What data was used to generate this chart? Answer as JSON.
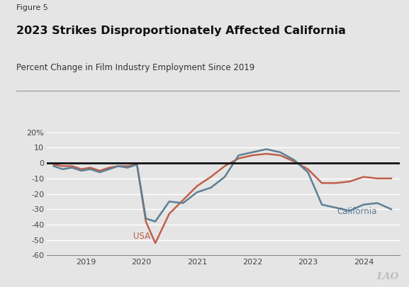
{
  "figure_label": "Figure 5",
  "title": "2023 Strikes Disproportionately Affected California",
  "subtitle": "Percent Change in Film Industry Employment Since 2019",
  "background_color": "#e5e5e5",
  "plot_background_color": "#e5e5e5",
  "california_color": "#5d7f95",
  "usa_color": "#c0604a",
  "zero_line_color": "#111111",
  "grid_color": "#ffffff",
  "california_label": "California",
  "usa_label": "USA",
  "ylim": [
    -60,
    22
  ],
  "yticks": [
    20,
    10,
    0,
    -10,
    -20,
    -30,
    -40,
    -50,
    -60
  ],
  "ytick_labels": [
    "20%",
    "10",
    "0",
    "-10",
    "-20",
    "-30",
    "-40",
    "-50",
    "-60"
  ],
  "california_x": [
    2018.42,
    2018.58,
    2018.75,
    2018.92,
    2019.08,
    2019.25,
    2019.42,
    2019.58,
    2019.75,
    2019.92,
    2020.08,
    2020.25,
    2020.5,
    2020.75,
    2021.0,
    2021.25,
    2021.5,
    2021.75,
    2022.0,
    2022.25,
    2022.5,
    2022.75,
    2023.0,
    2023.25,
    2023.5,
    2023.75,
    2024.0,
    2024.25,
    2024.5
  ],
  "california_y": [
    -2,
    -4,
    -3,
    -5,
    -4,
    -6,
    -4,
    -2,
    -3,
    -1,
    -36,
    -38,
    -25,
    -26,
    -19,
    -16,
    -9,
    5,
    7,
    9,
    7,
    2,
    -6,
    -27,
    -29,
    -31,
    -27,
    -26,
    -30
  ],
  "usa_x": [
    2018.42,
    2018.58,
    2018.75,
    2018.92,
    2019.08,
    2019.25,
    2019.42,
    2019.58,
    2019.75,
    2019.92,
    2020.08,
    2020.25,
    2020.5,
    2020.75,
    2021.0,
    2021.25,
    2021.5,
    2021.75,
    2022.0,
    2022.25,
    2022.5,
    2022.75,
    2023.0,
    2023.25,
    2023.5,
    2023.75,
    2024.0,
    2024.25,
    2024.5
  ],
  "usa_y": [
    -1,
    -2,
    -2,
    -4,
    -3,
    -5,
    -3,
    -2,
    -2,
    -1,
    -38,
    -52,
    -33,
    -24,
    -15,
    -9,
    -2,
    3,
    5,
    6,
    5,
    1,
    -4,
    -13,
    -13,
    -12,
    -9,
    -10,
    -10
  ],
  "xtick_positions": [
    2019,
    2020,
    2021,
    2022,
    2023,
    2024
  ],
  "xtick_labels": [
    "2019",
    "2020",
    "2021",
    "2022",
    "2023",
    "2024"
  ],
  "lao_watermark": "LAO"
}
